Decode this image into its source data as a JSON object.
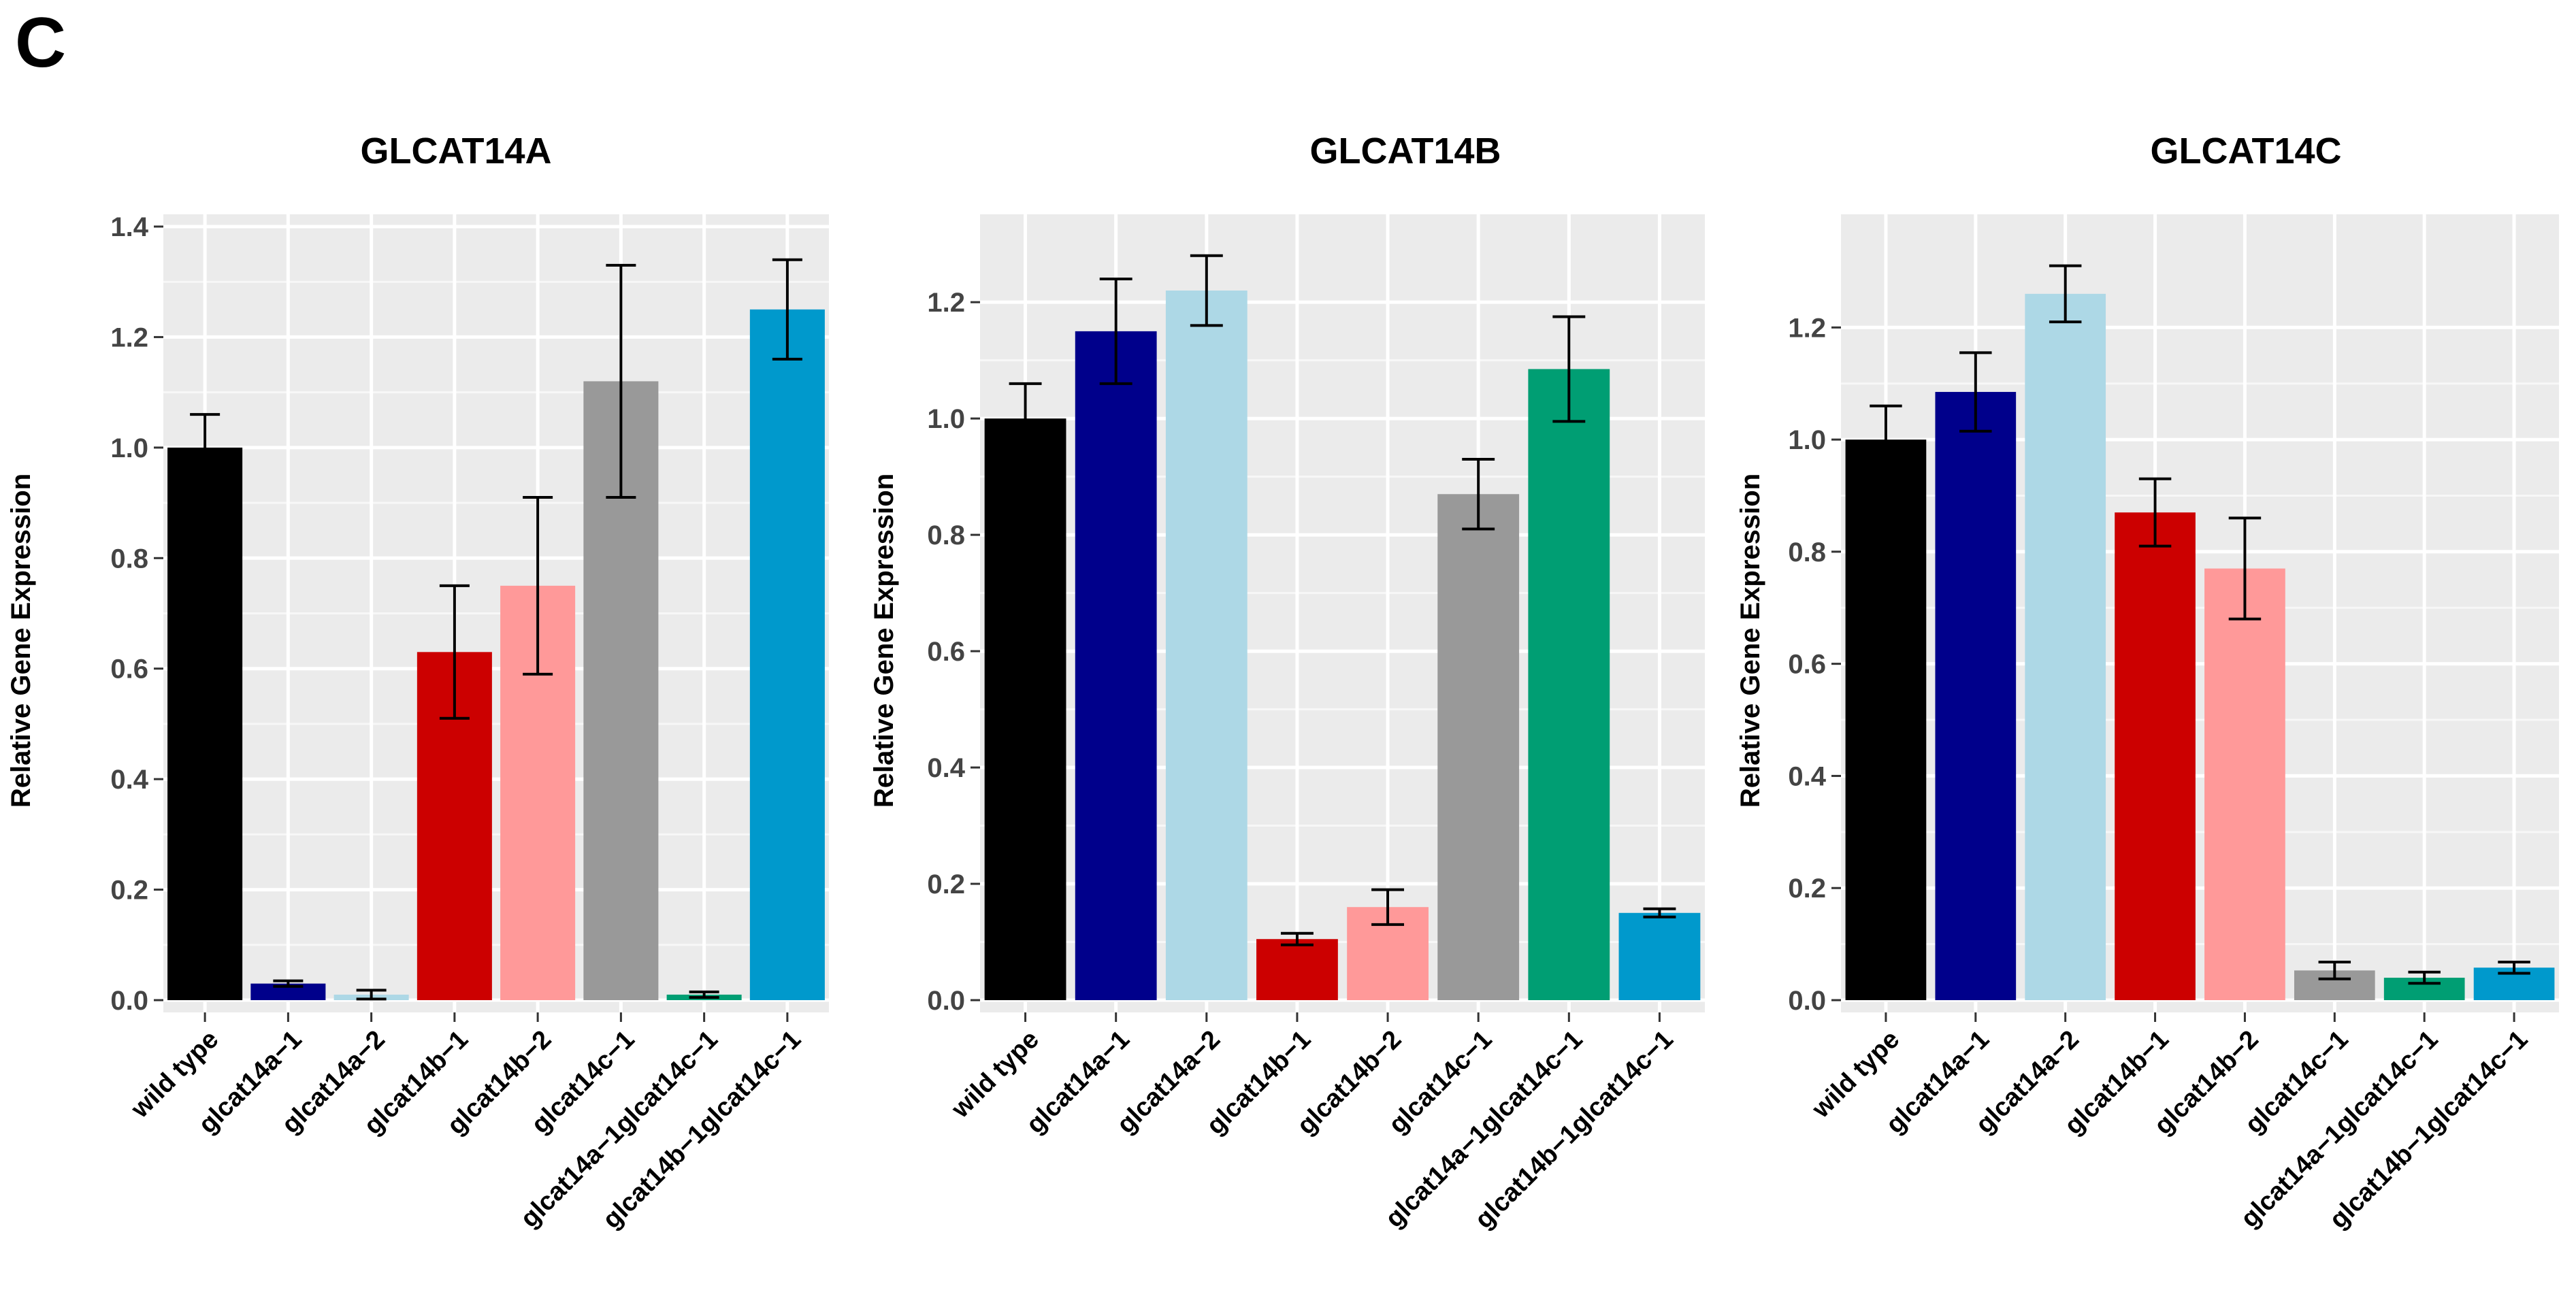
{
  "panel_label": "C",
  "chart_data": [
    {
      "type": "bar",
      "title": "GLCAT14A",
      "xlabel": "",
      "ylabel": "Relative Gene Expression",
      "ylim": [
        0,
        1.4
      ],
      "yticks": [
        "0.0",
        "0.2",
        "0.4",
        "0.6",
        "0.8",
        "1.0",
        "1.2",
        "1.4"
      ],
      "grid": true,
      "categories": [
        "wild type",
        "glcat14a−1",
        "glcat14a−2",
        "glcat14b−1",
        "glcat14b−2",
        "glcat14c−1",
        "glcat14a−1glcat14c−1",
        "glcat14b−1glcat14c−1"
      ],
      "values": [
        1.0,
        0.03,
        0.01,
        0.63,
        0.75,
        1.12,
        0.01,
        1.25
      ],
      "errors": [
        0.06,
        0.005,
        0.008,
        0.12,
        0.16,
        0.21,
        0.005,
        0.09
      ],
      "colors": [
        "#000000",
        "#00008B",
        "#ADD8E6",
        "#CC0000",
        "#FF9999",
        "#999999",
        "#009E73",
        "#0099CC"
      ]
    },
    {
      "type": "bar",
      "title": "GLCAT14B",
      "xlabel": "",
      "ylabel": "Relative Gene Expression",
      "ylim": [
        0,
        1.33
      ],
      "yticks": [
        "0.0",
        "0.2",
        "0.4",
        "0.6",
        "0.8",
        "1.0",
        "1.2"
      ],
      "grid": true,
      "categories": [
        "wild type",
        "glcat14a−1",
        "glcat14a−2",
        "glcat14b−1",
        "glcat14b−2",
        "glcat14c−1",
        "glcat14a−1glcat14c−1",
        "glcat14b−1glcat14c−1"
      ],
      "values": [
        1.0,
        1.15,
        1.22,
        0.105,
        0.16,
        0.87,
        1.085,
        0.15
      ],
      "errors": [
        0.06,
        0.09,
        0.06,
        0.01,
        0.03,
        0.06,
        0.09,
        0.007
      ],
      "colors": [
        "#000000",
        "#00008B",
        "#ADD8E6",
        "#CC0000",
        "#FF9999",
        "#999999",
        "#009E73",
        "#0099CC"
      ]
    },
    {
      "type": "bar",
      "title": "GLCAT14C",
      "xlabel": "",
      "ylabel": "Relative Gene Expression",
      "ylim": [
        0,
        1.38
      ],
      "yticks": [
        "0.0",
        "0.2",
        "0.4",
        "0.6",
        "0.8",
        "1.0",
        "1.2"
      ],
      "grid": true,
      "categories": [
        "wild type",
        "glcat14a−1",
        "glcat14a−2",
        "glcat14b−1",
        "glcat14b−2",
        "glcat14c−1",
        "glcat14a−1glcat14c−1",
        "glcat14b−1glcat14c−1"
      ],
      "values": [
        1.0,
        1.085,
        1.26,
        0.87,
        0.77,
        0.053,
        0.04,
        0.058
      ],
      "errors": [
        0.06,
        0.07,
        0.05,
        0.06,
        0.09,
        0.015,
        0.01,
        0.01
      ],
      "colors": [
        "#000000",
        "#00008B",
        "#ADD8E6",
        "#CC0000",
        "#FF9999",
        "#999999",
        "#009E73",
        "#0099CC"
      ]
    }
  ]
}
